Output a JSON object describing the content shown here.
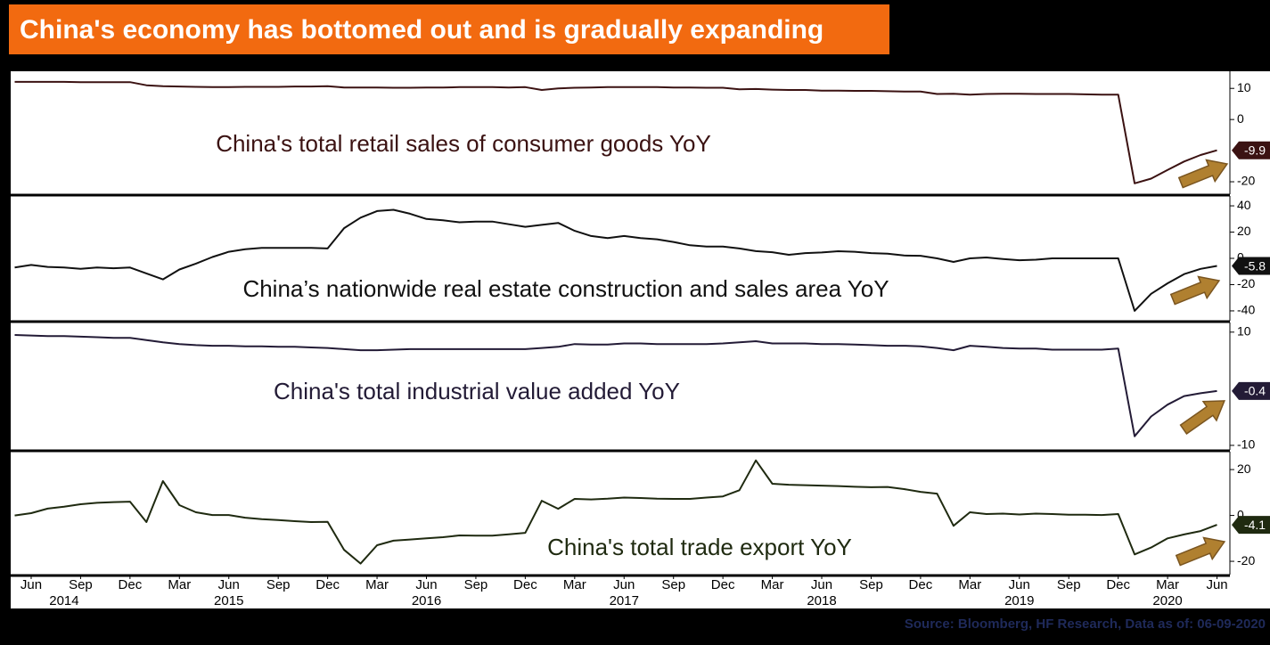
{
  "title": "China's economy has bottomed out and is gradually expanding",
  "source": "Source: Bloomberg, HF Research, Data as of: 06-09-2020",
  "x_axis": {
    "x": [
      "2014-05",
      "2014-06",
      "2014-07",
      "2014-08",
      "2014-09",
      "2014-10",
      "2014-11",
      "2014-12",
      "2015-01",
      "2015-02",
      "2015-03",
      "2015-04",
      "2015-05",
      "2015-06",
      "2015-07",
      "2015-08",
      "2015-09",
      "2015-10",
      "2015-11",
      "2015-12",
      "2016-01",
      "2016-02",
      "2016-03",
      "2016-04",
      "2016-05",
      "2016-06",
      "2016-07",
      "2016-08",
      "2016-09",
      "2016-10",
      "2016-11",
      "2016-12",
      "2017-01",
      "2017-02",
      "2017-03",
      "2017-04",
      "2017-05",
      "2017-06",
      "2017-07",
      "2017-08",
      "2017-09",
      "2017-10",
      "2017-11",
      "2017-12",
      "2018-01",
      "2018-02",
      "2018-03",
      "2018-04",
      "2018-05",
      "2018-06",
      "2018-07",
      "2018-08",
      "2018-09",
      "2018-10",
      "2018-11",
      "2018-12",
      "2019-01",
      "2019-02",
      "2019-03",
      "2019-04",
      "2019-05",
      "2019-06",
      "2019-07",
      "2019-08",
      "2019-09",
      "2019-10",
      "2019-11",
      "2019-12",
      "2020-01",
      "2020-02",
      "2020-03",
      "2020-04",
      "2020-05",
      "2020-06"
    ],
    "xticks": [
      {
        "value": "2014-06",
        "label": "Jun"
      },
      {
        "value": "2014-09",
        "label": "Sep"
      },
      {
        "value": "2014-12",
        "label": "Dec"
      },
      {
        "value": "2015-03",
        "label": "Mar"
      },
      {
        "value": "2015-06",
        "label": "Jun"
      },
      {
        "value": "2015-09",
        "label": "Sep"
      },
      {
        "value": "2015-12",
        "label": "Dec"
      },
      {
        "value": "2016-03",
        "label": "Mar"
      },
      {
        "value": "2016-06",
        "label": "Jun"
      },
      {
        "value": "2016-09",
        "label": "Sep"
      },
      {
        "value": "2016-12",
        "label": "Dec"
      },
      {
        "value": "2017-03",
        "label": "Mar"
      },
      {
        "value": "2017-06",
        "label": "Jun"
      },
      {
        "value": "2017-09",
        "label": "Sep"
      },
      {
        "value": "2017-12",
        "label": "Dec"
      },
      {
        "value": "2018-03",
        "label": "Mar"
      },
      {
        "value": "2018-06",
        "label": "Jun"
      },
      {
        "value": "2018-09",
        "label": "Sep"
      },
      {
        "value": "2018-12",
        "label": "Dec"
      },
      {
        "value": "2019-03",
        "label": "Mar"
      },
      {
        "value": "2019-06",
        "label": "Jun"
      },
      {
        "value": "2019-09",
        "label": "Sep"
      },
      {
        "value": "2019-12",
        "label": "Dec"
      },
      {
        "value": "2020-03",
        "label": "Mar"
      },
      {
        "value": "2020-06",
        "label": "Jun"
      }
    ],
    "year_ticks": [
      {
        "value": "2014-08",
        "label": "2014"
      },
      {
        "value": "2015-06",
        "label": "2015"
      },
      {
        "value": "2016-06",
        "label": "2016"
      },
      {
        "value": "2017-06",
        "label": "2017"
      },
      {
        "value": "2018-06",
        "label": "2018"
      },
      {
        "value": "2019-06",
        "label": "2019"
      },
      {
        "value": "2020-03",
        "label": "2020"
      }
    ]
  },
  "chart_data": [
    {
      "type": "line",
      "ylim": [
        -24,
        15.5
      ],
      "yticks": [
        -20,
        0,
        10
      ],
      "series": [
        {
          "name": "China's total retail sales of consumer goods YoY",
          "color": "#3b1212",
          "values": [
            12.1,
            12.1,
            12.1,
            12.1,
            12.0,
            12.0,
            12.0,
            12.0,
            11.0,
            10.7,
            10.6,
            10.5,
            10.4,
            10.4,
            10.5,
            10.5,
            10.5,
            10.6,
            10.6,
            10.7,
            10.3,
            10.3,
            10.3,
            10.2,
            10.2,
            10.3,
            10.3,
            10.4,
            10.4,
            10.4,
            10.3,
            10.4,
            9.5,
            10.0,
            10.2,
            10.3,
            10.4,
            10.4,
            10.4,
            10.4,
            10.3,
            10.3,
            10.2,
            10.2,
            9.7,
            9.8,
            9.6,
            9.5,
            9.5,
            9.3,
            9.3,
            9.2,
            9.2,
            9.1,
            9.0,
            9.0,
            8.2,
            8.3,
            8.0,
            8.2,
            8.3,
            8.3,
            8.2,
            8.2,
            8.2,
            8.1,
            8.0,
            8.0,
            -20.5,
            -19,
            -16.2,
            -13.5,
            -11.4,
            -9.9
          ]
        }
      ]
    },
    {
      "type": "line",
      "ylim": [
        -47.5,
        47.5
      ],
      "yticks": [
        -40,
        -20,
        0,
        20,
        40
      ],
      "series": [
        {
          "name": "China’s nationwide real estate construction and sales area YoY",
          "color": "#111111",
          "values": [
            -7,
            -5,
            -6.5,
            -7,
            -8,
            -7,
            -7.5,
            -7,
            -11.5,
            -16,
            -8.5,
            -4,
            1,
            5,
            7,
            8,
            8,
            8,
            8,
            7.5,
            23,
            31,
            36,
            37,
            34,
            30,
            29,
            27.5,
            28,
            28,
            26,
            24,
            25.5,
            27,
            21,
            17,
            15.5,
            17,
            15.5,
            14.5,
            12.5,
            10,
            9,
            9,
            7.5,
            5.5,
            4.7,
            2.7,
            4,
            4.5,
            5.4,
            5,
            4,
            3.5,
            2.2,
            2,
            0,
            -2.7,
            0,
            0.7,
            -0.5,
            -1.4,
            -1,
            0,
            0,
            0,
            0,
            0,
            -40,
            -27,
            -19,
            -12,
            -8,
            -5.8
          ]
        }
      ]
    },
    {
      "type": "line",
      "ylim": [
        -10.8,
        11.7
      ],
      "yticks": [
        -10,
        10
      ],
      "series": [
        {
          "name": "China's total industrial value added YoY",
          "color": "#231b36",
          "values": [
            9.5,
            9.4,
            9.3,
            9.3,
            9.2,
            9.1,
            9.0,
            9.0,
            8.6,
            8.2,
            7.9,
            7.7,
            7.6,
            7.6,
            7.5,
            7.5,
            7.4,
            7.4,
            7.3,
            7.2,
            7.0,
            6.8,
            6.8,
            6.9,
            7.0,
            7.0,
            7.0,
            7.0,
            7.0,
            7.0,
            7.0,
            7.0,
            7.2,
            7.4,
            7.9,
            7.8,
            7.8,
            8.0,
            8.0,
            7.9,
            7.9,
            7.9,
            7.9,
            8.0,
            8.2,
            8.4,
            8.0,
            8.0,
            8.0,
            7.9,
            7.9,
            7.8,
            7.7,
            7.6,
            7.6,
            7.5,
            7.2,
            6.8,
            7.6,
            7.4,
            7.2,
            7.1,
            7.1,
            6.9,
            6.9,
            6.9,
            6.9,
            7.1,
            -8.4,
            -4.9,
            -2.8,
            -1.3,
            -0.8,
            -0.4
          ]
        }
      ]
    },
    {
      "type": "line",
      "ylim": [
        -25.8,
        27.8
      ],
      "yticks": [
        -20,
        0,
        20
      ],
      "series": [
        {
          "name": "China's total trade export YoY",
          "color": "#1f2a10",
          "values": [
            0,
            1,
            3,
            3.8,
            4.9,
            5.5,
            5.8,
            6,
            -2.9,
            15,
            4.5,
            1.4,
            0.2,
            0.2,
            -1,
            -1.6,
            -2,
            -2.5,
            -2.9,
            -2.8,
            -15,
            -21,
            -13,
            -11,
            -10.5,
            -10,
            -9.5,
            -8.7,
            -8.8,
            -8.8,
            -8.2,
            -7.6,
            6.4,
            2.9,
            7.2,
            7,
            7.3,
            7.8,
            7.6,
            7.3,
            7.2,
            7.2,
            7.8,
            8.3,
            11,
            24,
            13.8,
            13.4,
            13.2,
            13,
            12.8,
            12.5,
            12.3,
            12.4,
            11.5,
            10.3,
            9.5,
            -4.5,
            1.4,
            0.6,
            0.8,
            0.4,
            0.8,
            0.6,
            0.3,
            0.3,
            0.2,
            0.6,
            -17,
            -14,
            -10,
            -8.3,
            -6.8,
            -4.1
          ]
        }
      ]
    }
  ]
}
